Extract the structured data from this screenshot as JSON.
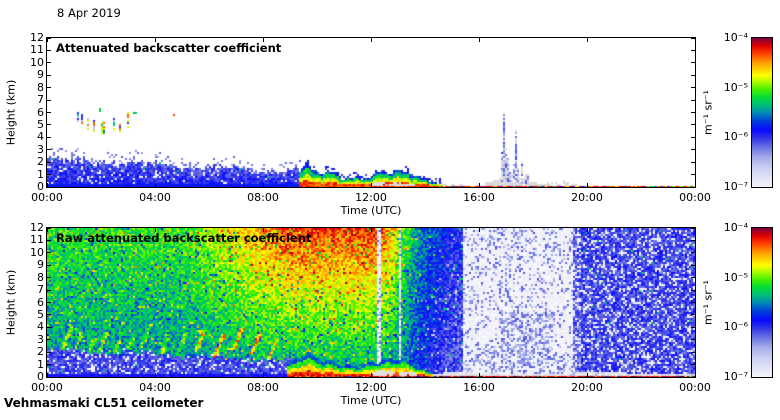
{
  "page": {
    "date_label": "8 Apr 2019",
    "footer_label": "Vehmasmaki CL51 ceilometer"
  },
  "colormap": {
    "stops": [
      [
        0.0,
        "#f3f3fb"
      ],
      [
        0.06,
        "#e2e4f7"
      ],
      [
        0.13,
        "#c9cdf1"
      ],
      [
        0.2,
        "#a2aae9"
      ],
      [
        0.26,
        "#6e76e4"
      ],
      [
        0.32,
        "#383ce6"
      ],
      [
        0.38,
        "#0a0aff"
      ],
      [
        0.44,
        "#003cdc"
      ],
      [
        0.5,
        "#008cb4"
      ],
      [
        0.55,
        "#00be78"
      ],
      [
        0.6,
        "#00dc3c"
      ],
      [
        0.65,
        "#3cf000"
      ],
      [
        0.7,
        "#a0fa00"
      ],
      [
        0.75,
        "#ffff00"
      ],
      [
        0.8,
        "#ffc800"
      ],
      [
        0.85,
        "#ff8c00"
      ],
      [
        0.9,
        "#ff3c00"
      ],
      [
        0.95,
        "#e10000"
      ],
      [
        1.0,
        "#82003c"
      ]
    ]
  },
  "chart_data": [
    {
      "type": "heatmap",
      "title": "Attenuated backscatter coefficient",
      "xlabel": "Time (UTC)",
      "ylabel": "Height (km)",
      "xlim_hours": [
        0,
        24
      ],
      "ylim_km": [
        0,
        12
      ],
      "x_tick_hours": [
        0,
        4,
        8,
        12,
        16,
        20,
        24
      ],
      "x_tick_labels": [
        "00:00",
        "04:00",
        "08:00",
        "12:00",
        "16:00",
        "20:00",
        "00:00"
      ],
      "y_tick_labels": [
        "0",
        "1",
        "2",
        "3",
        "4",
        "5",
        "6",
        "7",
        "8",
        "9",
        "10",
        "11",
        "12"
      ],
      "colorbar": {
        "unit_label": "m⁻¹ sr⁻¹",
        "tick_labels": [
          "10⁻⁴",
          "10⁻⁵",
          "10⁻⁶",
          "10⁻⁷"
        ],
        "value_min": "1e-7",
        "value_max": "1e-4"
      },
      "features": {
        "boundary_layer": {
          "t": [
            0,
            9.45
          ],
          "top0": 2.3,
          "slope": -0.115
        },
        "aerosol_layer": {
          "t": [
            9.3,
            14.6
          ],
          "base": 1.05,
          "spike_t": 9.55,
          "spike_amp": 0.55
        },
        "gray_blobs": [
          {
            "t": 12.3,
            "h": 0.22,
            "rt": 0.28,
            "rh": 0.2
          },
          {
            "t": 12.95,
            "h": 0.18,
            "rt": 0.3,
            "rh": 0.16
          },
          {
            "t": 13.45,
            "h": 0.15,
            "rt": 0.2,
            "rh": 0.13
          }
        ],
        "surface_line": {
          "t": [
            14.45,
            24
          ],
          "top_km": 0.14
        },
        "haze_band": {
          "t": [
            13.9,
            19.6
          ],
          "top_km": 0.42
        },
        "cloud_streaks": [
          {
            "t": 1.12,
            "h": [
              5.3,
              6.05
            ],
            "w": 0.07
          },
          {
            "t": 1.3,
            "h": [
              5.05,
              5.9
            ],
            "w": 0.06
          },
          {
            "t": 1.52,
            "h": [
              4.55,
              5.5
            ],
            "w": 0.07
          },
          {
            "t": 1.73,
            "h": [
              4.4,
              5.35
            ],
            "w": 0.06
          },
          {
            "t": 2.08,
            "h": [
              4.3,
              5.25
            ],
            "w": 0.1
          },
          {
            "t": 2.5,
            "h": [
              4.55,
              5.6
            ],
            "w": 0.08
          },
          {
            "t": 2.72,
            "h": [
              4.5,
              5.05
            ],
            "w": 0.05
          },
          {
            "t": 3.02,
            "h": [
              4.75,
              6.1
            ],
            "w": 0.06
          }
        ],
        "dots": [
          {
            "t": 4.72,
            "h": 5.82,
            "v": 0.9
          },
          {
            "t": 1.95,
            "h": 6.2,
            "v": 0.6
          },
          {
            "t": 3.25,
            "h": 6.0,
            "v": 0.55
          }
        ],
        "precip": {
          "t": [
            16.15,
            18.9
          ],
          "plume_center": 17.2,
          "plume_width": 0.78,
          "plume_top": 0.95,
          "spikes": [
            {
              "t": 16.93,
              "top": 5.9,
              "w": 0.09
            },
            {
              "t": 17.1,
              "top": 3.1,
              "w": 0.05
            },
            {
              "t": 17.37,
              "top": 4.8,
              "w": 0.075
            },
            {
              "t": 17.57,
              "top": 2.5,
              "w": 0.05
            },
            {
              "t": 17.78,
              "top": 1.8,
              "w": 0.05
            }
          ]
        }
      }
    },
    {
      "type": "heatmap",
      "title": "Raw attenuated backscatter coefficient",
      "xlabel": "Time (UTC)",
      "ylabel": "Height (km)",
      "xlim_hours": [
        0,
        24
      ],
      "ylim_km": [
        0,
        12
      ],
      "x_tick_hours": [
        0,
        4,
        8,
        12,
        16,
        20,
        24
      ],
      "x_tick_labels": [
        "00:00",
        "04:00",
        "08:00",
        "12:00",
        "16:00",
        "20:00",
        "00:00"
      ],
      "y_tick_labels": [
        "0",
        "1",
        "2",
        "3",
        "4",
        "5",
        "6",
        "7",
        "8",
        "9",
        "10",
        "11",
        "12"
      ],
      "colorbar": {
        "unit_label": "m⁻¹ sr⁻¹",
        "tick_labels": [
          "10⁻⁴",
          "10⁻⁵",
          "10⁻⁶",
          "10⁻⁷"
        ],
        "value_min": "1e-7",
        "value_max": "1e-4"
      },
      "features": {
        "bands": {
          "warm_on": [
            5,
            9
          ],
          "warm_off": [
            12.35,
            13.6
          ],
          "cool_on": [
            12.8,
            15.0
          ],
          "quiet": [
            15.42,
            19.45
          ],
          "dark_strip": [
            19.45,
            19.75
          ]
        },
        "boundary_layer": {
          "t": [
            0,
            9.5
          ],
          "top0": 2.25,
          "slope": -0.1
        },
        "virga": [
          {
            "t": 0.55,
            "ht": 4.0
          },
          {
            "t": 0.95,
            "ht": 3.6
          },
          {
            "t": 1.45,
            "ht": 3.2
          },
          {
            "t": 1.9,
            "ht": 3.7
          },
          {
            "t": 2.35,
            "ht": 3.0
          },
          {
            "t": 2.9,
            "ht": 3.4
          },
          {
            "t": 3.5,
            "ht": 4.2
          },
          {
            "t": 4.15,
            "ht": 3.1
          },
          {
            "t": 4.8,
            "ht": 3.5
          },
          {
            "t": 5.5,
            "ht": 3.8,
            "boost": 0.1
          },
          {
            "t": 6.2,
            "ht": 3.4,
            "boost": 0.12
          },
          {
            "t": 6.9,
            "ht": 4.0,
            "boost": 0.15
          },
          {
            "t": 7.55,
            "ht": 3.6,
            "boost": 0.15
          },
          {
            "t": 8.2,
            "ht": 3.2,
            "boost": 0.1
          }
        ],
        "aerosol_layer": {
          "t": [
            8.9,
            14.35
          ],
          "base": 1.2,
          "spike_t": 9.6,
          "spike_amp": 0.5
        },
        "lavender_cols": [
          {
            "t": 12.3,
            "w": 0.1
          },
          {
            "t": 13.05,
            "w": 0.08
          }
        ],
        "quiet_blob": {
          "t": [
            16.8,
            18.75
          ],
          "h": [
            0.8,
            5.2
          ]
        },
        "surface_line": {
          "t": [
            8.9,
            24
          ],
          "top_km": 0.11
        },
        "gray_band": {
          "t": [
            14.3,
            24
          ],
          "top_km": 0.36
        },
        "gray_blobs": [
          {
            "t": 12.45,
            "h": 0.28,
            "rt": 0.42,
            "rh": 0.26
          },
          {
            "t": 13.35,
            "h": 0.22,
            "rt": 0.35,
            "rh": 0.2
          }
        ]
      }
    }
  ]
}
